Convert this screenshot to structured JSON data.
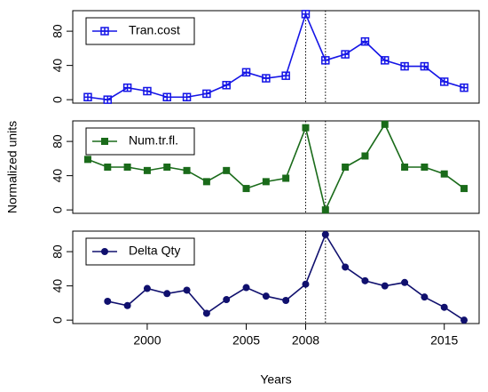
{
  "chart_data": {
    "type": "line",
    "x": [
      1997,
      1998,
      1999,
      2000,
      2001,
      2002,
      2003,
      2004,
      2005,
      2006,
      2007,
      2008,
      2009,
      2010,
      2011,
      2012,
      2013,
      2014,
      2015,
      2016
    ],
    "xlim": [
      1996.24,
      2016.76
    ],
    "xticks": [
      2000,
      2005,
      2008,
      2015
    ],
    "xlabel": "Years",
    "ylabel": "Normalized units",
    "vlines": [
      2008,
      2009
    ],
    "panels": [
      {
        "ylim": [
          -4,
          104
        ],
        "yticks": [
          0,
          40,
          80
        ],
        "series": [
          {
            "name": "Tran.cost",
            "color": "#1414e6",
            "marker": "boxplus",
            "values": [
              3,
              0,
              14,
              10,
              3,
              3,
              7,
              17,
              32,
              25,
              28,
              100,
              46,
              53,
              68,
              46,
              39,
              39,
              21,
              14
            ]
          }
        ]
      },
      {
        "ylim": [
          -4,
          104
        ],
        "yticks": [
          0,
          40,
          80
        ],
        "series": [
          {
            "name": "Num.tr.fl.",
            "color": "#1a6b1a",
            "marker": "square",
            "values": [
              59,
              50,
              50,
              46,
              50,
              46,
              33,
              46,
              25,
              33,
              37,
              96,
              0,
              50,
              63,
              100,
              50,
              50,
              42,
              25
            ]
          }
        ]
      },
      {
        "ylim": [
          -4,
          104
        ],
        "yticks": [
          0,
          40,
          80
        ],
        "series": [
          {
            "name": "Delta Qty",
            "color": "#10106e",
            "marker": "circle",
            "values": [
              null,
              22,
              17,
              37,
              31,
              35,
              8,
              24,
              38,
              28,
              23,
              42,
              100,
              62,
              46,
              40,
              44,
              27,
              15,
              0
            ]
          }
        ]
      }
    ]
  }
}
